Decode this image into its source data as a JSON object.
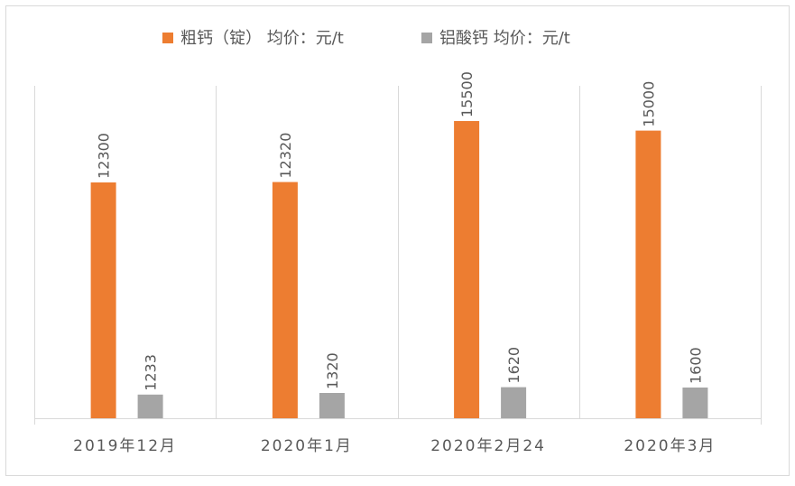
{
  "chart_data": {
    "type": "bar",
    "title": "",
    "xlabel": "",
    "ylabel": "",
    "ylim": [
      0,
      17500
    ],
    "grid": "vertical-category-separators",
    "legend_position": "top",
    "categories": [
      "2019年12月",
      "2020年1月",
      "2020年2月24",
      "2020年3月"
    ],
    "series": [
      {
        "name": "粗钙（锭） 均价：元/t",
        "color": "#ED7D31",
        "values": [
          12300,
          12320,
          15500,
          15000
        ]
      },
      {
        "name": "铝酸钙  均价：元/t",
        "color": "#A5A5A5",
        "values": [
          1233,
          1320,
          1620,
          1600
        ]
      }
    ]
  }
}
